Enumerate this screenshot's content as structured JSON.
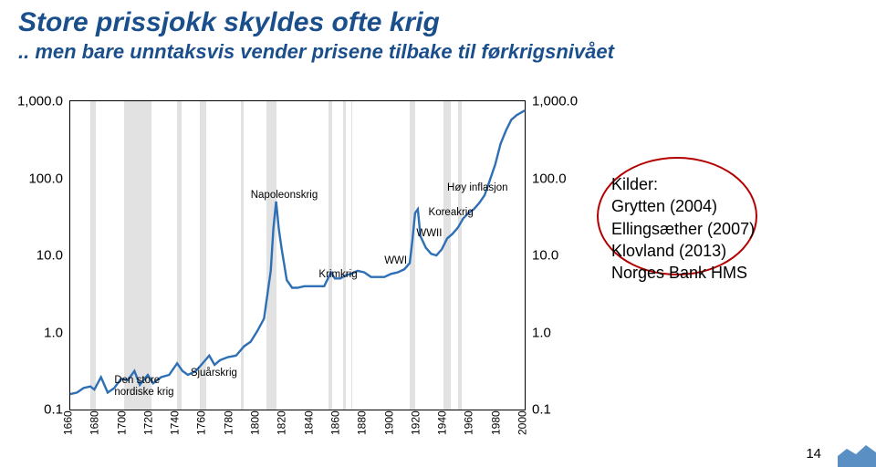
{
  "title": {
    "text": "Store prissjokk skyldes ofte krig",
    "color": "#1a4f8b"
  },
  "subtitle": {
    "text": ".. men bare unntaksvis vender prisene tilbake til førkrigsnivået",
    "color": "#1a4f8b"
  },
  "page_number": "14",
  "logo_color": "#5a8fc4",
  "sources": {
    "heading": "Kilder:",
    "items": [
      "Grytten (2004)",
      "Ellingsæther (2007)",
      "Klovland (2013)",
      "Norges Bank HMS"
    ],
    "circle_color": "#b30000"
  },
  "chart": {
    "type": "line",
    "xrange": [
      1660,
      2000
    ],
    "yrange_log": [
      -1,
      3
    ],
    "yticks": [
      {
        "val": 3,
        "label": "1,000.0"
      },
      {
        "val": 2,
        "label": "100.0"
      },
      {
        "val": 1,
        "label": "10.0"
      },
      {
        "val": 0,
        "label": "1.0"
      },
      {
        "val": -1,
        "label": "0.1"
      }
    ],
    "xticks": [
      1660,
      1680,
      1700,
      1720,
      1740,
      1760,
      1780,
      1800,
      1820,
      1840,
      1860,
      1880,
      1900,
      1920,
      1940,
      1960,
      1980,
      2000
    ],
    "line_color": "#2e6fb5",
    "line_width": 2.4,
    "band_color": "#e2e2e2",
    "bands": [
      [
        1675,
        1679
      ],
      [
        1700,
        1721
      ],
      [
        1740,
        1743
      ],
      [
        1757,
        1762
      ],
      [
        1788,
        1790
      ],
      [
        1807,
        1814
      ],
      [
        1853,
        1856
      ],
      [
        1864,
        1866
      ],
      [
        1870,
        1871
      ],
      [
        1914,
        1918
      ],
      [
        1939,
        1945
      ],
      [
        1950,
        1953
      ]
    ],
    "events": [
      {
        "label": "Den store\nnordiske krig",
        "x": 1693,
        "ylog": -0.55
      },
      {
        "label": "Sjuårskrig",
        "x": 1750,
        "ylog": -0.45
      },
      {
        "label": "Napoleonskrig",
        "x": 1795,
        "ylog": 1.85
      },
      {
        "label": "Krimkrig",
        "x": 1846,
        "ylog": 0.82
      },
      {
        "label": "WWI",
        "x": 1895,
        "ylog": 1.0
      },
      {
        "label": "WWII",
        "x": 1919,
        "ylog": 1.35
      },
      {
        "label": "Koreakrig",
        "x": 1928,
        "ylog": 1.63
      },
      {
        "label": "Høy inflasjon",
        "x": 1942,
        "ylog": 1.95
      }
    ],
    "series": [
      [
        1660,
        -0.8
      ],
      [
        1665,
        -0.78
      ],
      [
        1670,
        -0.72
      ],
      [
        1675,
        -0.7
      ],
      [
        1678,
        -0.74
      ],
      [
        1683,
        -0.58
      ],
      [
        1688,
        -0.78
      ],
      [
        1693,
        -0.72
      ],
      [
        1698,
        -0.6
      ],
      [
        1703,
        -0.62
      ],
      [
        1708,
        -0.5
      ],
      [
        1712,
        -0.68
      ],
      [
        1718,
        -0.55
      ],
      [
        1722,
        -0.66
      ],
      [
        1728,
        -0.58
      ],
      [
        1734,
        -0.55
      ],
      [
        1740,
        -0.4
      ],
      [
        1744,
        -0.5
      ],
      [
        1748,
        -0.55
      ],
      [
        1754,
        -0.5
      ],
      [
        1760,
        -0.38
      ],
      [
        1764,
        -0.3
      ],
      [
        1768,
        -0.42
      ],
      [
        1772,
        -0.36
      ],
      [
        1778,
        -0.32
      ],
      [
        1784,
        -0.3
      ],
      [
        1790,
        -0.18
      ],
      [
        1795,
        -0.12
      ],
      [
        1800,
        0.02
      ],
      [
        1805,
        0.18
      ],
      [
        1808,
        0.55
      ],
      [
        1810,
        0.8
      ],
      [
        1812,
        1.35
      ],
      [
        1814,
        1.7
      ],
      [
        1816,
        1.35
      ],
      [
        1818,
        1.1
      ],
      [
        1822,
        0.68
      ],
      [
        1826,
        0.58
      ],
      [
        1830,
        0.58
      ],
      [
        1835,
        0.6
      ],
      [
        1840,
        0.6
      ],
      [
        1845,
        0.6
      ],
      [
        1850,
        0.6
      ],
      [
        1855,
        0.78
      ],
      [
        1858,
        0.7
      ],
      [
        1862,
        0.7
      ],
      [
        1866,
        0.74
      ],
      [
        1870,
        0.76
      ],
      [
        1875,
        0.8
      ],
      [
        1880,
        0.78
      ],
      [
        1885,
        0.72
      ],
      [
        1890,
        0.72
      ],
      [
        1895,
        0.72
      ],
      [
        1900,
        0.76
      ],
      [
        1905,
        0.78
      ],
      [
        1910,
        0.82
      ],
      [
        1914,
        0.9
      ],
      [
        1916,
        1.2
      ],
      [
        1918,
        1.55
      ],
      [
        1920,
        1.6
      ],
      [
        1922,
        1.25
      ],
      [
        1926,
        1.1
      ],
      [
        1930,
        1.02
      ],
      [
        1934,
        1.0
      ],
      [
        1938,
        1.08
      ],
      [
        1942,
        1.22
      ],
      [
        1946,
        1.28
      ],
      [
        1950,
        1.36
      ],
      [
        1954,
        1.48
      ],
      [
        1958,
        1.55
      ],
      [
        1962,
        1.6
      ],
      [
        1966,
        1.68
      ],
      [
        1970,
        1.78
      ],
      [
        1974,
        1.98
      ],
      [
        1978,
        2.18
      ],
      [
        1982,
        2.45
      ],
      [
        1986,
        2.62
      ],
      [
        1990,
        2.76
      ],
      [
        1994,
        2.82
      ],
      [
        1998,
        2.86
      ],
      [
        2000,
        2.88
      ]
    ]
  }
}
